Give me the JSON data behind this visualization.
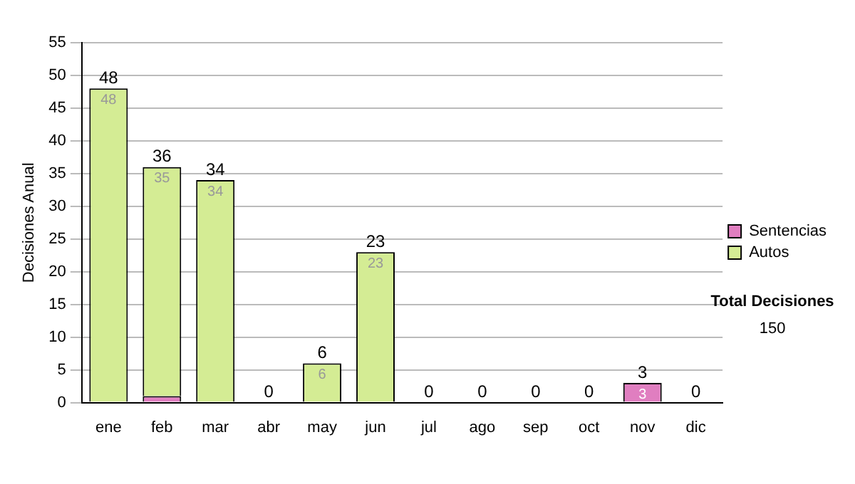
{
  "chart_data": {
    "type": "bar",
    "ylabel": "Decisiones Anual",
    "categories": [
      "ene",
      "feb",
      "mar",
      "abr",
      "may",
      "jun",
      "jul",
      "ago",
      "sep",
      "oct",
      "nov",
      "dic"
    ],
    "series": [
      {
        "name": "Sentencias",
        "color": "#e07ec0",
        "values": [
          0,
          1,
          0,
          0,
          0,
          0,
          0,
          0,
          0,
          0,
          3,
          0
        ],
        "value_labels": [
          null,
          null,
          null,
          null,
          null,
          null,
          null,
          null,
          null,
          null,
          "3",
          null
        ]
      },
      {
        "name": "Autos",
        "color": "#d4ec94",
        "values": [
          48,
          35,
          34,
          0,
          6,
          23,
          0,
          0,
          0,
          0,
          0,
          0
        ],
        "value_labels": [
          "48",
          "35",
          "34",
          null,
          "6",
          "23",
          null,
          null,
          null,
          null,
          null,
          null
        ]
      }
    ],
    "stacked": true,
    "totals": [
      "48",
      "36",
      "34",
      "0",
      "6",
      "23",
      "0",
      "0",
      "0",
      "0",
      "3",
      "0"
    ],
    "ylim": [
      0,
      55
    ],
    "yticks": [
      0,
      5,
      10,
      15,
      20,
      25,
      30,
      35,
      40,
      45,
      50,
      55
    ],
    "grid": "y",
    "legend": "right",
    "annotations": [
      "Total Decisiones",
      "150"
    ]
  }
}
